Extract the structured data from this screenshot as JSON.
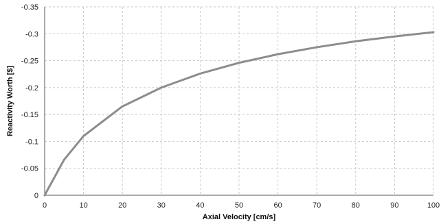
{
  "chart_data": {
    "type": "line",
    "title": "",
    "xlabel": "Axial Velocity [cm/s]",
    "ylabel": "Reactivity Worth [$]",
    "xlim": [
      0,
      100
    ],
    "ylim": [
      0,
      -0.35
    ],
    "x_ticks": [
      0,
      10,
      20,
      30,
      40,
      50,
      60,
      70,
      80,
      90,
      100
    ],
    "x_tick_labels": [
      "0",
      "10",
      "20",
      "30",
      "40",
      "50",
      "60",
      "70",
      "80",
      "90",
      "100"
    ],
    "y_ticks": [
      0,
      -0.05,
      -0.1,
      -0.15,
      -0.2,
      -0.25,
      -0.3,
      -0.35
    ],
    "y_tick_labels": [
      "0",
      "-0.05",
      "-0.1",
      "-0.15",
      "-0.2",
      "-0.25",
      "-0.3",
      "-0.35"
    ],
    "grid": true,
    "legend": "none",
    "series": [
      {
        "color": "#8c8c8c",
        "x": [
          0,
          5,
          10,
          20,
          30,
          40,
          50,
          60,
          70,
          80,
          90,
          100
        ],
        "y": [
          0,
          -0.066,
          -0.11,
          -0.165,
          -0.2,
          -0.226,
          -0.246,
          -0.262,
          -0.275,
          -0.286,
          -0.295,
          -0.303
        ]
      }
    ]
  }
}
